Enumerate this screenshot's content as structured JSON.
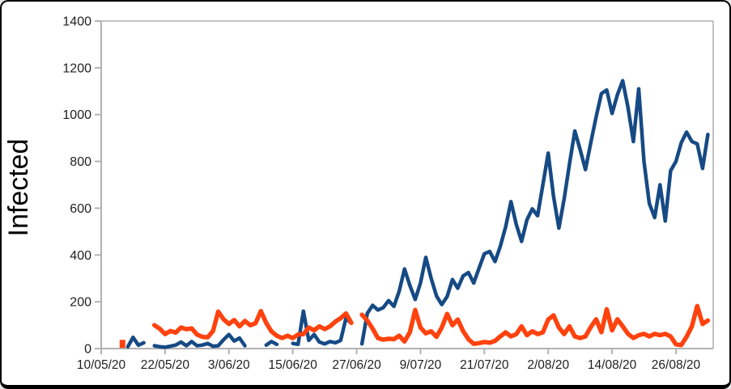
{
  "window": {
    "background": "#ffffff",
    "outer_border_color": "#000000"
  },
  "chart_data": {
    "type": "line",
    "title": "",
    "xlabel": "",
    "ylabel": "Infected",
    "legend": "none",
    "grid": "frame only (top, right, left, bottom borders; no inner gridlines)",
    "axis_color": "#b2b2b2",
    "tick_label_color": "#1f1f1f",
    "ylim": [
      0,
      1400
    ],
    "y_ticks": [
      0,
      200,
      400,
      600,
      800,
      1000,
      1200,
      1400
    ],
    "x_day_range": [
      0,
      115
    ],
    "x_tick_days": [
      0,
      12,
      24,
      36,
      48,
      60,
      72,
      84,
      96,
      108
    ],
    "x_tick_labels": [
      "10/05/20",
      "22/05/20",
      "3/06/20",
      "15/06/20",
      "27/06/20",
      "9/07/20",
      "21/07/20",
      "2/08/20",
      "14/08/20",
      "26/08/20"
    ],
    "series": [
      {
        "name": "infected-blue",
        "color": "#164A84",
        "stroke_width": 4.5,
        "points": [
          [
            5,
            8
          ],
          [
            6,
            48
          ],
          [
            7,
            14
          ],
          [
            8,
            25
          ],
          [
            10,
            12
          ],
          [
            11,
            8
          ],
          [
            12,
            6
          ],
          [
            13,
            10
          ],
          [
            14,
            15
          ],
          [
            15,
            28
          ],
          [
            16,
            12
          ],
          [
            17,
            30
          ],
          [
            18,
            12
          ],
          [
            19,
            15
          ],
          [
            20,
            22
          ],
          [
            21,
            10
          ],
          [
            22,
            12
          ],
          [
            23,
            38
          ],
          [
            24,
            60
          ],
          [
            25,
            32
          ],
          [
            26,
            45
          ],
          [
            27,
            12
          ],
          [
            31,
            15
          ],
          [
            32,
            30
          ],
          [
            33,
            18
          ],
          [
            36,
            22
          ],
          [
            37,
            18
          ],
          [
            38,
            160
          ],
          [
            39,
            35
          ],
          [
            40,
            60
          ],
          [
            41,
            28
          ],
          [
            42,
            20
          ],
          [
            43,
            30
          ],
          [
            44,
            25
          ],
          [
            45,
            35
          ],
          [
            46,
            130
          ],
          [
            47,
            108
          ],
          [
            49,
            20
          ],
          [
            50,
            150
          ],
          [
            51,
            185
          ],
          [
            52,
            165
          ],
          [
            53,
            175
          ],
          [
            54,
            205
          ],
          [
            55,
            180
          ],
          [
            56,
            245
          ],
          [
            57,
            340
          ],
          [
            58,
            270
          ],
          [
            59,
            210
          ],
          [
            60,
            280
          ],
          [
            61,
            390
          ],
          [
            62,
            300
          ],
          [
            63,
            225
          ],
          [
            64,
            188
          ],
          [
            65,
            222
          ],
          [
            66,
            295
          ],
          [
            67,
            258
          ],
          [
            68,
            310
          ],
          [
            69,
            325
          ],
          [
            70,
            280
          ],
          [
            71,
            343
          ],
          [
            72,
            405
          ],
          [
            73,
            415
          ],
          [
            74,
            372
          ],
          [
            75,
            437
          ],
          [
            76,
            520
          ],
          [
            77,
            628
          ],
          [
            78,
            530
          ],
          [
            79,
            458
          ],
          [
            80,
            550
          ],
          [
            81,
            597
          ],
          [
            82,
            568
          ],
          [
            83,
            700
          ],
          [
            84,
            835
          ],
          [
            85,
            650
          ],
          [
            86,
            515
          ],
          [
            87,
            640
          ],
          [
            88,
            790
          ],
          [
            89,
            930
          ],
          [
            90,
            850
          ],
          [
            91,
            765
          ],
          [
            92,
            880
          ],
          [
            93,
            990
          ],
          [
            94,
            1090
          ],
          [
            95,
            1105
          ],
          [
            96,
            1005
          ],
          [
            97,
            1085
          ],
          [
            98,
            1145
          ],
          [
            99,
            1030
          ],
          [
            100,
            885
          ],
          [
            101,
            1110
          ],
          [
            102,
            800
          ],
          [
            103,
            620
          ],
          [
            104,
            560
          ],
          [
            105,
            700
          ],
          [
            106,
            545
          ],
          [
            107,
            760
          ],
          [
            108,
            800
          ],
          [
            109,
            880
          ],
          [
            110,
            925
          ],
          [
            111,
            885
          ],
          [
            112,
            875
          ],
          [
            113,
            770
          ],
          [
            114,
            915
          ]
        ]
      },
      {
        "name": "infected-orange",
        "color": "#FF420E",
        "stroke_width": 5.5,
        "points": [
          [
            4,
            20
          ],
          [
            10,
            100
          ],
          [
            11,
            85
          ],
          [
            12,
            62
          ],
          [
            13,
            75
          ],
          [
            14,
            68
          ],
          [
            15,
            90
          ],
          [
            16,
            83
          ],
          [
            17,
            86
          ],
          [
            18,
            60
          ],
          [
            19,
            50
          ],
          [
            20,
            48
          ],
          [
            21,
            75
          ],
          [
            22,
            158
          ],
          [
            23,
            125
          ],
          [
            24,
            105
          ],
          [
            25,
            122
          ],
          [
            26,
            95
          ],
          [
            27,
            118
          ],
          [
            28,
            100
          ],
          [
            29,
            108
          ],
          [
            30,
            160
          ],
          [
            31,
            110
          ],
          [
            32,
            73
          ],
          [
            33,
            55
          ],
          [
            34,
            45
          ],
          [
            35,
            55
          ],
          [
            36,
            45
          ],
          [
            37,
            60
          ],
          [
            38,
            62
          ],
          [
            39,
            90
          ],
          [
            40,
            78
          ],
          [
            41,
            95
          ],
          [
            42,
            83
          ],
          [
            43,
            95
          ],
          [
            44,
            115
          ],
          [
            45,
            130
          ],
          [
            46,
            150
          ],
          [
            47,
            110
          ],
          [
            49,
            145
          ],
          [
            50,
            120
          ],
          [
            51,
            85
          ],
          [
            52,
            45
          ],
          [
            53,
            38
          ],
          [
            54,
            42
          ],
          [
            55,
            40
          ],
          [
            56,
            55
          ],
          [
            57,
            30
          ],
          [
            58,
            70
          ],
          [
            59,
            165
          ],
          [
            60,
            90
          ],
          [
            61,
            65
          ],
          [
            62,
            74
          ],
          [
            63,
            50
          ],
          [
            64,
            90
          ],
          [
            65,
            148
          ],
          [
            66,
            100
          ],
          [
            67,
            124
          ],
          [
            68,
            75
          ],
          [
            69,
            40
          ],
          [
            70,
            20
          ],
          [
            71,
            23
          ],
          [
            72,
            28
          ],
          [
            73,
            25
          ],
          [
            74,
            33
          ],
          [
            75,
            52
          ],
          [
            76,
            69
          ],
          [
            77,
            52
          ],
          [
            78,
            62
          ],
          [
            79,
            95
          ],
          [
            80,
            57
          ],
          [
            81,
            74
          ],
          [
            82,
            62
          ],
          [
            83,
            69
          ],
          [
            84,
            124
          ],
          [
            85,
            142
          ],
          [
            86,
            90
          ],
          [
            87,
            62
          ],
          [
            88,
            95
          ],
          [
            89,
            52
          ],
          [
            90,
            45
          ],
          [
            91,
            52
          ],
          [
            92,
            92
          ],
          [
            93,
            125
          ],
          [
            94,
            70
          ],
          [
            95,
            168
          ],
          [
            96,
            78
          ],
          [
            97,
            125
          ],
          [
            98,
            95
          ],
          [
            99,
            63
          ],
          [
            100,
            45
          ],
          [
            101,
            57
          ],
          [
            102,
            63
          ],
          [
            103,
            52
          ],
          [
            104,
            63
          ],
          [
            105,
            57
          ],
          [
            106,
            63
          ],
          [
            107,
            52
          ],
          [
            108,
            18
          ],
          [
            109,
            15
          ],
          [
            110,
            50
          ],
          [
            111,
            95
          ],
          [
            112,
            182
          ],
          [
            113,
            105
          ],
          [
            114,
            120
          ]
        ]
      }
    ]
  }
}
